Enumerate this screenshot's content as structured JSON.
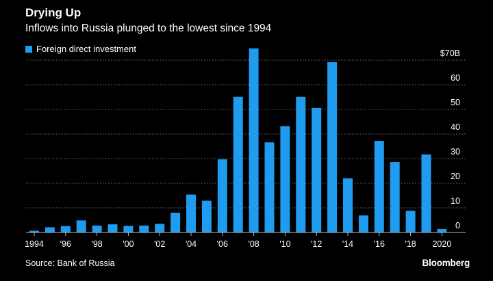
{
  "header": {
    "title": "Drying Up",
    "subtitle": "Inflows into Russia plunged to the lowest since 1994"
  },
  "footer": {
    "source": "Source: Bank of Russia",
    "brand": "Bloomberg"
  },
  "colors": {
    "background": "#000000",
    "bar": "#1f9bf0",
    "grid": "#6e6e6e",
    "text": "#ffffff"
  },
  "chart_data": {
    "type": "bar",
    "title": "Drying Up",
    "subtitle": "Inflows into Russia plunged to the lowest since 1994",
    "xlabel": "",
    "ylabel": "",
    "unit_label": "$70B",
    "ylim": [
      0,
      70
    ],
    "y_ticks": [
      0,
      10,
      20,
      30,
      40,
      50,
      60,
      70
    ],
    "y_tick_labels": [
      "0",
      "10",
      "20",
      "30",
      "40",
      "50",
      "60",
      "$70B"
    ],
    "x_tick_labels": [
      {
        "year": 1994,
        "label": "1994"
      },
      {
        "year": 1996,
        "label": "'96"
      },
      {
        "year": 1998,
        "label": "'98"
      },
      {
        "year": 2000,
        "label": "'00"
      },
      {
        "year": 2002,
        "label": "'02"
      },
      {
        "year": 2004,
        "label": "'04"
      },
      {
        "year": 2006,
        "label": "'06"
      },
      {
        "year": 2008,
        "label": "'08"
      },
      {
        "year": 2010,
        "label": "'10"
      },
      {
        "year": 2012,
        "label": "'12"
      },
      {
        "year": 2014,
        "label": "'14"
      },
      {
        "year": 2016,
        "label": "'16"
      },
      {
        "year": 2018,
        "label": "'18"
      },
      {
        "year": 2020,
        "label": "2020"
      }
    ],
    "legend": {
      "position": "top-left"
    },
    "grid": true,
    "series": [
      {
        "name": "Foreign direct investment",
        "color": "#1f9bf0",
        "x": [
          1994,
          1995,
          1996,
          1997,
          1998,
          1999,
          2000,
          2001,
          2002,
          2003,
          2004,
          2005,
          2006,
          2007,
          2008,
          2009,
          2010,
          2011,
          2012,
          2013,
          2014,
          2015,
          2016,
          2017,
          2018,
          2019,
          2020
        ],
        "values": [
          0.7,
          2.1,
          2.6,
          4.9,
          2.8,
          3.3,
          2.7,
          2.8,
          3.5,
          8.0,
          15.4,
          12.9,
          29.7,
          55.1,
          74.8,
          36.6,
          43.2,
          55.1,
          50.6,
          69.2,
          22.0,
          6.9,
          37.2,
          28.6,
          8.8,
          31.7,
          1.4
        ]
      }
    ]
  }
}
